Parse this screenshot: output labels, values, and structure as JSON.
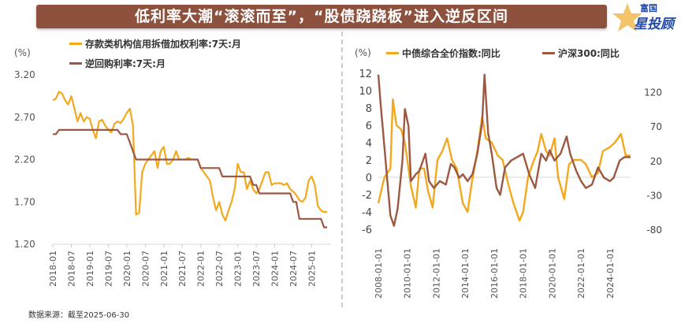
{
  "header": {
    "title": "低利率大潮“滚滚而至”，“股债跷跷板”进入逆反区间",
    "logo_top": "富国",
    "logo_main": "星投顾"
  },
  "footer": {
    "source": "数据来源：截至2025-06-30"
  },
  "colors": {
    "yellow": "#F4A81D",
    "brown": "#9C5842",
    "banner": "#8E513D"
  },
  "chart_data": [
    {
      "type": "line",
      "unit": "(%)",
      "ylim": [
        1.2,
        3.2
      ],
      "yticks": [
        "3.20",
        "2.70",
        "2.20",
        "1.70",
        "1.20"
      ],
      "xticks": [
        "2018-01",
        "2018-07",
        "2019-01",
        "2019-07",
        "2020-01",
        "2020-07",
        "2021-01",
        "2021-07",
        "2022-01",
        "2022-07",
        "2023-01",
        "2023-07",
        "2024-01",
        "2024-07",
        "2025-01"
      ],
      "x_range": [
        "2018-01",
        "2025-06"
      ],
      "frequency": "monthly",
      "legend": "top-left",
      "series": [
        {
          "name": "存款类机构信用拆借加权利率:7天:月",
          "color": "#F4A81D",
          "values": [
            2.9,
            2.92,
            3.0,
            2.98,
            2.9,
            2.85,
            2.95,
            2.8,
            2.65,
            2.75,
            2.65,
            2.7,
            2.68,
            2.55,
            2.45,
            2.65,
            2.67,
            2.6,
            2.55,
            2.52,
            2.62,
            2.65,
            2.63,
            2.68,
            2.75,
            2.8,
            2.6,
            1.55,
            1.57,
            2.05,
            2.15,
            2.2,
            2.25,
            2.3,
            2.1,
            2.3,
            2.35,
            2.15,
            2.15,
            2.2,
            2.3,
            2.2,
            2.2,
            2.2,
            2.22,
            2.2,
            2.2,
            2.2,
            2.1,
            2.05,
            2.0,
            1.95,
            1.75,
            1.6,
            1.7,
            1.55,
            1.48,
            1.6,
            1.7,
            1.85,
            2.15,
            2.05,
            2.05,
            1.85,
            1.95,
            1.85,
            1.8,
            1.85,
            1.95,
            2.05,
            2.05,
            1.9,
            1.92,
            1.92,
            1.92,
            1.9,
            1.92,
            1.85,
            1.82,
            1.78,
            1.72,
            1.7,
            1.75,
            1.95,
            2.0,
            1.9,
            1.65,
            1.6,
            1.58,
            1.58
          ]
        },
        {
          "name": "逆回购利率:7天:月",
          "color": "#9C5842",
          "values": [
            2.5,
            2.5,
            2.55,
            2.55,
            2.55,
            2.55,
            2.55,
            2.55,
            2.55,
            2.55,
            2.55,
            2.55,
            2.55,
            2.55,
            2.55,
            2.55,
            2.55,
            2.55,
            2.55,
            2.55,
            2.55,
            2.55,
            2.5,
            2.5,
            2.5,
            2.4,
            2.3,
            2.2,
            2.2,
            2.2,
            2.2,
            2.2,
            2.2,
            2.2,
            2.2,
            2.2,
            2.2,
            2.2,
            2.2,
            2.2,
            2.2,
            2.2,
            2.2,
            2.2,
            2.2,
            2.2,
            2.2,
            2.2,
            2.1,
            2.1,
            2.1,
            2.1,
            2.1,
            2.1,
            2.1,
            2.0,
            2.0,
            2.0,
            2.0,
            2.0,
            2.0,
            2.0,
            2.0,
            2.0,
            2.0,
            1.9,
            1.9,
            1.8,
            1.8,
            1.8,
            1.8,
            1.8,
            1.8,
            1.8,
            1.8,
            1.8,
            1.8,
            1.8,
            1.7,
            1.7,
            1.5,
            1.5,
            1.5,
            1.5,
            1.5,
            1.5,
            1.5,
            1.5,
            1.4,
            1.4
          ]
        }
      ]
    },
    {
      "type": "line",
      "unit": "(%)",
      "ylim_left": [
        -6,
        12
      ],
      "ylim_right": [
        -80,
        147
      ],
      "yticks_left": [
        "12",
        "10",
        "8",
        "6",
        "4",
        "2",
        "0",
        "-2",
        "-4",
        "-6"
      ],
      "yticks_right": [
        "120",
        "70",
        "20",
        "-30",
        "-80"
      ],
      "xticks": [
        "2008-01-01",
        "2010-01-01",
        "2012-01-01",
        "2014-01-01",
        "2016-01-01",
        "2018-01-01",
        "2020-01-01",
        "2022-01-01",
        "2024-01-01"
      ],
      "x_range": [
        "2008-01",
        "2025-06"
      ],
      "zero_line": true,
      "legend": "top",
      "series": [
        {
          "name": "中债综合全价指数:同比",
          "color": "#F4A81D",
          "axis": "left",
          "points": [
            [
              "2008-01",
              -3
            ],
            [
              "2008-06",
              0
            ],
            [
              "2008-11",
              1
            ],
            [
              "2009-01",
              9
            ],
            [
              "2009-04",
              6
            ],
            [
              "2009-08",
              5.5
            ],
            [
              "2009-11",
              4
            ],
            [
              "2010-04",
              -1
            ],
            [
              "2010-08",
              -3.5
            ],
            [
              "2010-11",
              1
            ],
            [
              "2011-03",
              1
            ],
            [
              "2011-06",
              -1.5
            ],
            [
              "2011-10",
              -3.5
            ],
            [
              "2012-02",
              2
            ],
            [
              "2012-06",
              3
            ],
            [
              "2012-10",
              4.5
            ],
            [
              "2013-02",
              2
            ],
            [
              "2013-06",
              1
            ],
            [
              "2013-11",
              -3
            ],
            [
              "2014-03",
              -4
            ],
            [
              "2014-06",
              -1
            ],
            [
              "2014-11",
              3
            ],
            [
              "2015-03",
              7
            ],
            [
              "2015-06",
              4.5
            ],
            [
              "2015-11",
              4
            ],
            [
              "2016-04",
              2.5
            ],
            [
              "2016-08",
              2
            ],
            [
              "2017-01",
              -1
            ],
            [
              "2017-05",
              -3
            ],
            [
              "2017-10",
              -5
            ],
            [
              "2018-01",
              -4
            ],
            [
              "2018-05",
              0
            ],
            [
              "2018-10",
              2
            ],
            [
              "2019-01",
              3
            ],
            [
              "2019-04",
              5
            ],
            [
              "2019-08",
              3
            ],
            [
              "2019-11",
              2.5
            ],
            [
              "2020-03",
              4.5
            ],
            [
              "2020-06",
              0
            ],
            [
              "2020-11",
              -2.5
            ],
            [
              "2021-03",
              1.5
            ],
            [
              "2021-07",
              2
            ],
            [
              "2022-01",
              2
            ],
            [
              "2022-05",
              1.5
            ],
            [
              "2022-10",
              0
            ],
            [
              "2023-03",
              0.5
            ],
            [
              "2023-07",
              3
            ],
            [
              "2024-01",
              3.5
            ],
            [
              "2024-05",
              4
            ],
            [
              "2024-10",
              5
            ],
            [
              "2025-02",
              2.5
            ],
            [
              "2025-06",
              2.5
            ]
          ]
        },
        {
          "name": "沪深300:同比",
          "color": "#9C5842",
          "axis": "right",
          "points": [
            [
              "2008-01",
              145
            ],
            [
              "2008-03",
              100
            ],
            [
              "2008-07",
              20
            ],
            [
              "2008-11",
              -60
            ],
            [
              "2009-02",
              -75
            ],
            [
              "2009-05",
              -50
            ],
            [
              "2009-09",
              20
            ],
            [
              "2009-11",
              95
            ],
            [
              "2010-02",
              70
            ],
            [
              "2010-04",
              -10
            ],
            [
              "2010-08",
              0
            ],
            [
              "2010-11",
              5
            ],
            [
              "2011-04",
              30
            ],
            [
              "2011-07",
              -10
            ],
            [
              "2011-11",
              -20
            ],
            [
              "2012-04",
              -10
            ],
            [
              "2012-09",
              -15
            ],
            [
              "2013-01",
              15
            ],
            [
              "2013-04",
              10
            ],
            [
              "2013-08",
              -5
            ],
            [
              "2013-11",
              0
            ],
            [
              "2014-03",
              -10
            ],
            [
              "2014-07",
              0
            ],
            [
              "2014-11",
              30
            ],
            [
              "2015-03",
              75
            ],
            [
              "2015-05",
              145
            ],
            [
              "2015-08",
              60
            ],
            [
              "2015-11",
              30
            ],
            [
              "2016-03",
              -20
            ],
            [
              "2016-06",
              -30
            ],
            [
              "2016-10",
              10
            ],
            [
              "2017-03",
              20
            ],
            [
              "2017-08",
              25
            ],
            [
              "2018-01",
              30
            ],
            [
              "2018-06",
              0
            ],
            [
              "2018-11",
              -20
            ],
            [
              "2019-04",
              30
            ],
            [
              "2019-08",
              20
            ],
            [
              "2019-11",
              35
            ],
            [
              "2020-03",
              20
            ],
            [
              "2020-08",
              30
            ],
            [
              "2021-01",
              55
            ],
            [
              "2021-04",
              30
            ],
            [
              "2021-09",
              5
            ],
            [
              "2022-01",
              -10
            ],
            [
              "2022-05",
              -20
            ],
            [
              "2022-10",
              -15
            ],
            [
              "2023-03",
              10
            ],
            [
              "2023-08",
              -5
            ],
            [
              "2024-01",
              -10
            ],
            [
              "2024-04",
              -5
            ],
            [
              "2024-09",
              20
            ],
            [
              "2025-01",
              25
            ],
            [
              "2025-06",
              25
            ]
          ]
        }
      ]
    }
  ]
}
